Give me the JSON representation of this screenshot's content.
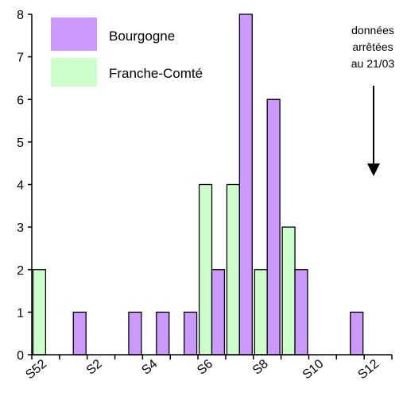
{
  "chart_data": {
    "type": "bar",
    "categories": [
      "S52",
      "S1",
      "S2",
      "S3",
      "S4",
      "S5",
      "S6",
      "S7",
      "S8",
      "S9",
      "S10",
      "S11",
      "S12"
    ],
    "x_tick_labels": [
      "S52",
      "S2",
      "S4",
      "S6",
      "S8",
      "S10",
      "S12"
    ],
    "series": [
      {
        "name": "Bourgogne",
        "color": "#cc99ff",
        "values": [
          0,
          1,
          0,
          1,
          1,
          1,
          2,
          8,
          6,
          2,
          0,
          1,
          0
        ]
      },
      {
        "name": "Franche-Comté",
        "color": "#ccffcc",
        "values": [
          2,
          0,
          0,
          0,
          0,
          0,
          4,
          4,
          2,
          3,
          0,
          0,
          0
        ]
      }
    ],
    "ylim": [
      0,
      8
    ],
    "y_ticks": [
      0,
      1,
      2,
      3,
      4,
      5,
      6,
      7,
      8
    ],
    "grid": false,
    "legend_position": "top-left",
    "annotation": {
      "lines": [
        "données",
        "arrêtées",
        "au 21/03"
      ],
      "category": "S12",
      "arrow": "down"
    }
  }
}
